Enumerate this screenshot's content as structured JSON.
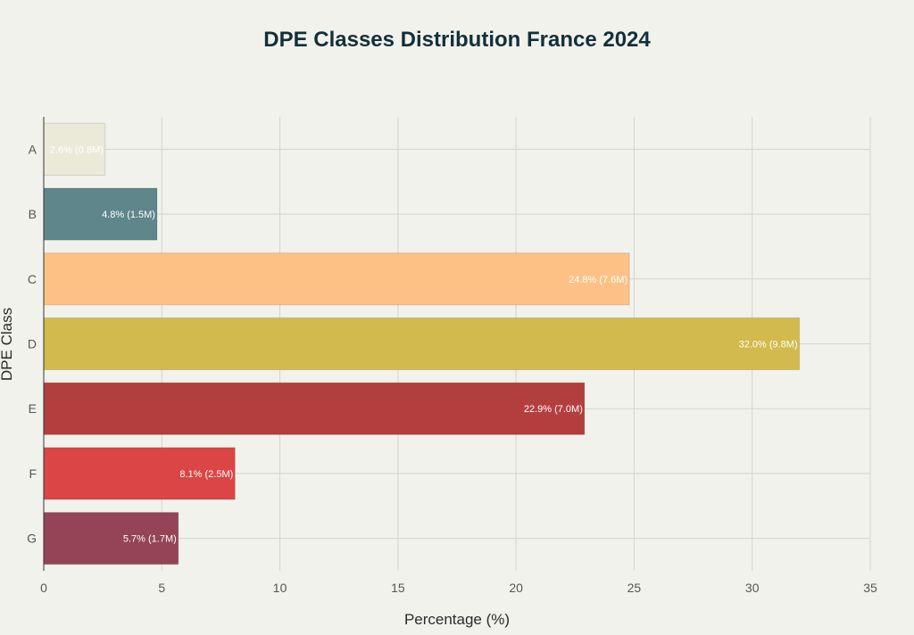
{
  "chart_data": {
    "type": "bar",
    "orientation": "horizontal",
    "title": "DPE Classes Distribution France 2024",
    "xlabel": "Percentage (%)",
    "ylabel": "DPE Class",
    "xlim": [
      0,
      35
    ],
    "xticks": [
      "0",
      "5",
      "10",
      "15",
      "20",
      "25",
      "30",
      "35"
    ],
    "grid": true,
    "categories": [
      "A",
      "B",
      "C",
      "D",
      "E",
      "F",
      "G"
    ],
    "values": [
      2.6,
      4.8,
      24.8,
      32.0,
      22.9,
      8.1,
      5.7
    ],
    "labels": [
      "2.6% (0.8M)",
      "4.8% (1.5M)",
      "24.8% (7.6M)",
      "32.0% (9.8M)",
      "22.9% (7.0M)",
      "8.1% (2.5M)",
      "5.7% (1.7M)"
    ],
    "colors": [
      "#ebe9d8",
      "#5e868b",
      "#fdc185",
      "#d2ba4c",
      "#b23f3e",
      "#db4545",
      "#944455"
    ]
  }
}
